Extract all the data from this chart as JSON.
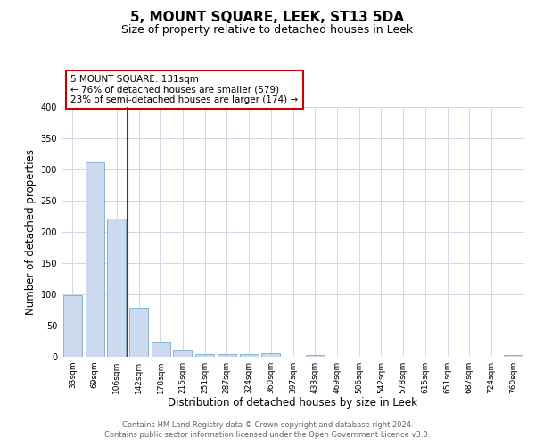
{
  "title": "5, MOUNT SQUARE, LEEK, ST13 5DA",
  "subtitle": "Size of property relative to detached houses in Leek",
  "xlabel": "Distribution of detached houses by size in Leek",
  "ylabel": "Number of detached properties",
  "categories": [
    "33sqm",
    "69sqm",
    "106sqm",
    "142sqm",
    "178sqm",
    "215sqm",
    "251sqm",
    "287sqm",
    "324sqm",
    "360sqm",
    "397sqm",
    "433sqm",
    "469sqm",
    "506sqm",
    "542sqm",
    "578sqm",
    "615sqm",
    "651sqm",
    "687sqm",
    "724sqm",
    "760sqm"
  ],
  "bar_values": [
    99,
    311,
    222,
    79,
    25,
    12,
    5,
    4,
    5,
    6,
    0,
    3,
    0,
    0,
    0,
    0,
    0,
    0,
    0,
    0,
    3
  ],
  "bar_color": "#ccdaf0",
  "bar_edge_color": "#7aaad0",
  "vline_position": 2.5,
  "vline_color": "#cc0000",
  "ylim": [
    0,
    400
  ],
  "yticks": [
    0,
    50,
    100,
    150,
    200,
    250,
    300,
    350,
    400
  ],
  "annotation_line1": "5 MOUNT SQUARE: 131sqm",
  "annotation_line2": "← 76% of detached houses are smaller (579)",
  "annotation_line3": "23% of semi-detached houses are larger (174) →",
  "footer_line1": "Contains HM Land Registry data © Crown copyright and database right 2024.",
  "footer_line2": "Contains public sector information licensed under the Open Government Licence v3.0.",
  "background_color": "#ffffff",
  "grid_color": "#d0d8e8",
  "title_fontsize": 11,
  "subtitle_fontsize": 9,
  "tick_fontsize": 6.5,
  "axis_label_fontsize": 8.5,
  "annotation_fontsize": 7.5,
  "footer_fontsize": 6
}
